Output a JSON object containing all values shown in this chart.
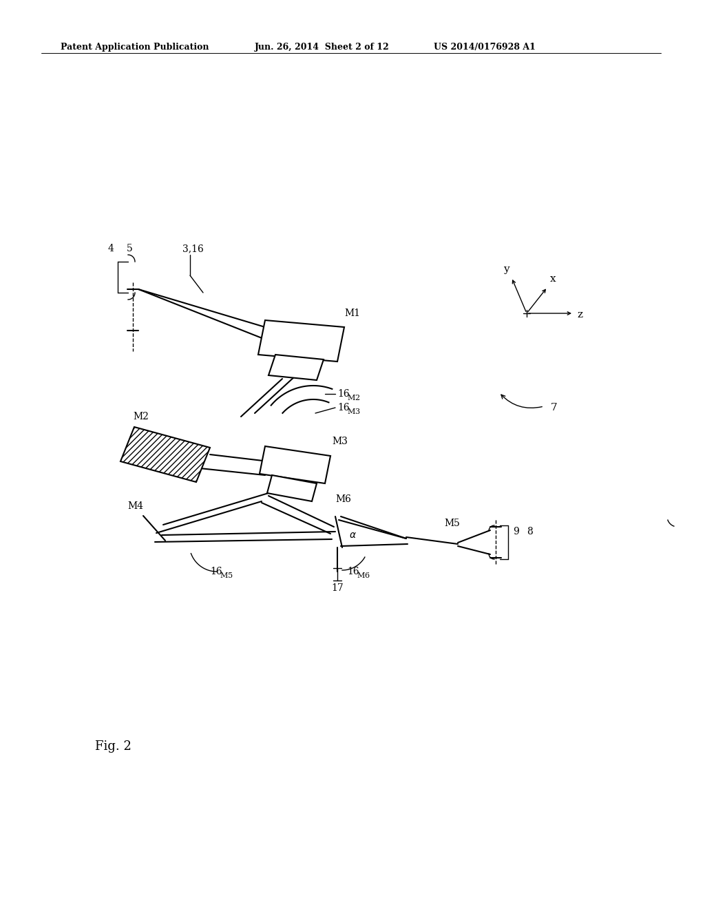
{
  "bg_color": "#ffffff",
  "header_left": "Patent Application Publication",
  "header_mid": "Jun. 26, 2014  Sheet 2 of 12",
  "header_right": "US 2014/0176928 A1",
  "fig_label": "Fig. 2",
  "line_color": "#000000",
  "lw": 1.5,
  "tlw": 1.0
}
